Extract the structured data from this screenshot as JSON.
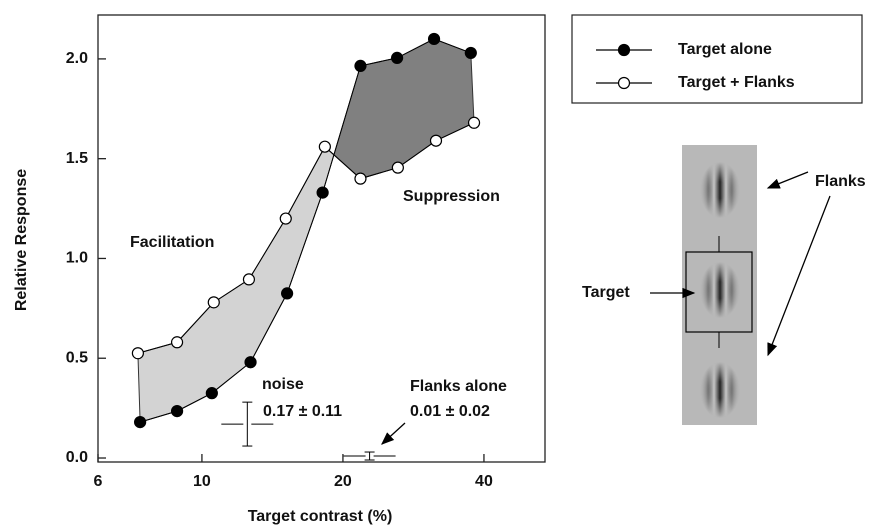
{
  "chart_data": {
    "type": "line",
    "xscale": "log",
    "x_label": "Target contrast (%)",
    "y_label": "Relative Response",
    "xlim": [
      6,
      54
    ],
    "ylim": [
      -0.02,
      2.22
    ],
    "xticks": [
      6,
      10,
      20,
      40
    ],
    "yticks": [
      {
        "value": 0,
        "label": "0.0"
      },
      0.5,
      {
        "value": 1,
        "label": "1.0"
      },
      1.5,
      {
        "value": 2,
        "label": "2.0"
      }
    ],
    "series": [
      {
        "name": "Target alone",
        "color": "#000000",
        "marker": "filled",
        "x": [
          7.38,
          8.85,
          10.5,
          12.7,
          15.2,
          18.1,
          21.8,
          26.1,
          31.3,
          37.5
        ],
        "values": [
          0.18,
          0.235,
          0.325,
          0.48,
          0.825,
          1.33,
          1.965,
          2.005,
          2.1,
          2.03
        ]
      },
      {
        "name": "Target + Flanks",
        "color": "#000000",
        "marker": "open",
        "x": [
          7.3,
          8.85,
          10.6,
          12.6,
          15.1,
          18.3,
          21.8,
          26.2,
          31.6,
          38.1
        ],
        "values": [
          0.525,
          0.58,
          0.78,
          0.895,
          1.2,
          1.56,
          1.4,
          1.455,
          1.59,
          1.68
        ]
      }
    ],
    "regions": {
      "facilitation": {
        "label": "Facilitation",
        "color": "#d3d3d3"
      },
      "suppression": {
        "label": "Suppression",
        "color": "#808080"
      }
    },
    "noise": {
      "label": "noise",
      "text": "0.17 ± 0.11",
      "x": 12.5,
      "value": 0.17,
      "error": 0.11
    },
    "flanks_alone": {
      "label": "Flanks alone",
      "text": "0.01 ± 0.02",
      "x": 22.8,
      "value": 0.01,
      "error": 0.02
    }
  },
  "inset": {
    "target_label": "Target",
    "flanks_label": "Flanks"
  }
}
